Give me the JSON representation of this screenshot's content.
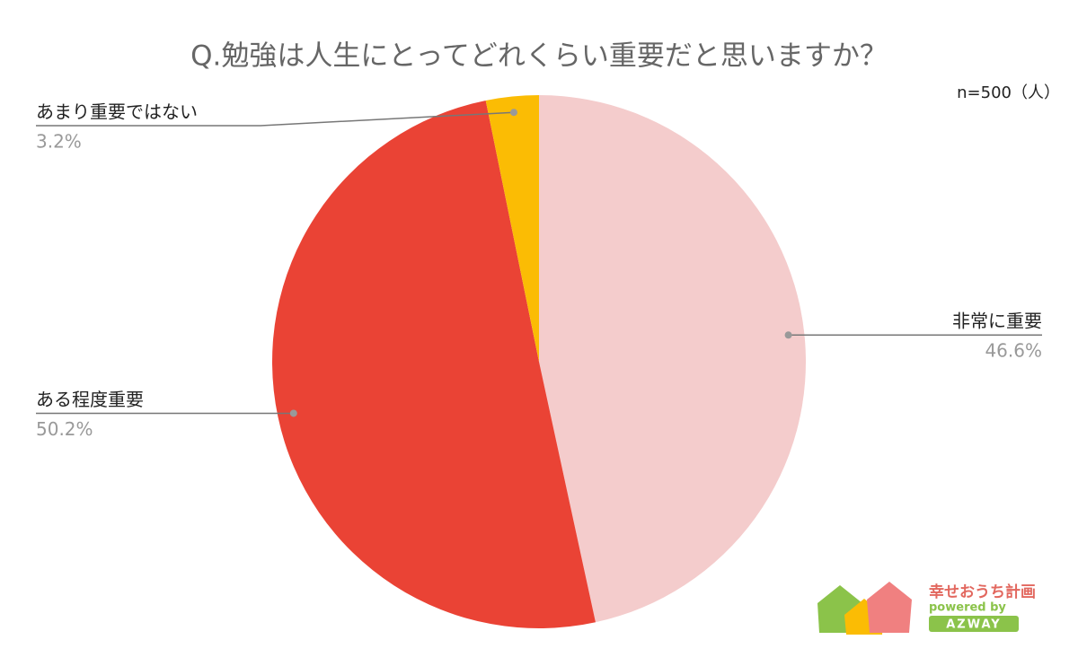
{
  "chart_data": {
    "type": "pie",
    "title": "Q.勉強は人生にとってどれくらい重要だと思いますか？",
    "note": "n=500（人）",
    "categories": [
      "非常に重要",
      "ある程度重要",
      "あまり重要ではない"
    ],
    "values": [
      46.6,
      50.2,
      3.2
    ],
    "value_labels": [
      "46.6%",
      "50.2%",
      "3.2%"
    ],
    "colors": [
      "#f4cccc",
      "#ea4335",
      "#fbbc04"
    ]
  },
  "logo": {
    "name": "幸せおうち計画",
    "powered": "powered by",
    "brand": "AZWAY"
  }
}
